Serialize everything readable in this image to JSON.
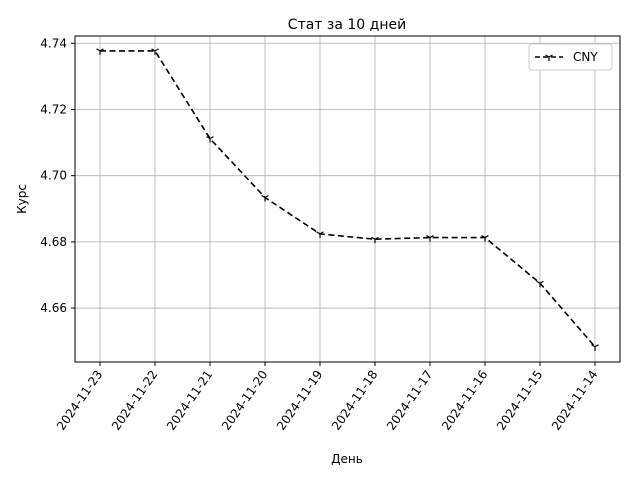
{
  "chart_data": {
    "type": "line",
    "title": "Стат за 10 дней",
    "xlabel": "День",
    "ylabel": "Курс",
    "categories": [
      "2024-11-23",
      "2024-11-22",
      "2024-11-21",
      "2024-11-20",
      "2024-11-19",
      "2024-11-18",
      "2024-11-17",
      "2024-11-16",
      "2024-11-15",
      "2024-11-14"
    ],
    "series": [
      {
        "name": "CNY",
        "values": [
          4.7377,
          4.7377,
          4.7112,
          4.6934,
          4.6824,
          4.6808,
          4.6813,
          4.6813,
          4.6675,
          4.6483
        ],
        "color": "#000000",
        "line_style": "dashed",
        "marker": "tri_down"
      }
    ],
    "ylim": [
      4.6437,
      4.7422
    ],
    "yticks": [
      "4.66",
      "4.68",
      "4.70",
      "4.72",
      "4.74"
    ],
    "ytick_values": [
      4.66,
      4.68,
      4.7,
      4.72,
      4.74
    ],
    "grid": true,
    "legend_position": "top-right",
    "xtick_rotation": 55
  }
}
